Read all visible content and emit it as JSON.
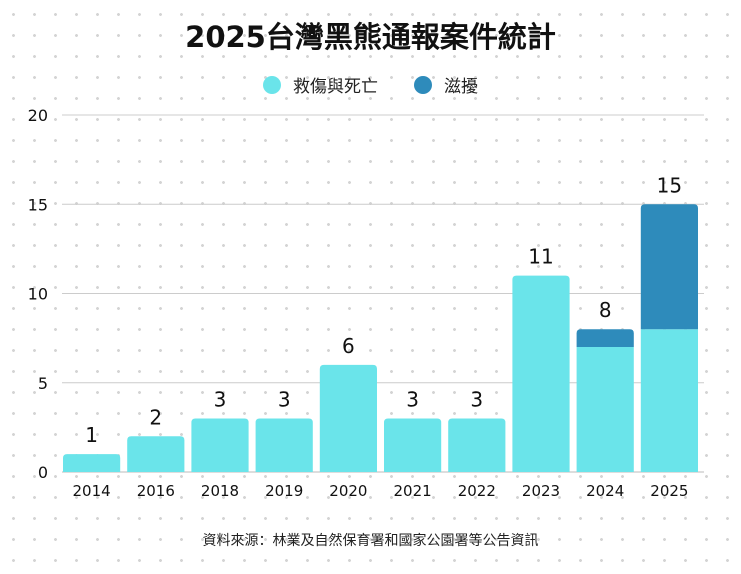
{
  "chart_data": {
    "type": "bar",
    "stacked": true,
    "title": "2025台灣黑熊通報案件統計",
    "categories": [
      "2014",
      "2016",
      "2018",
      "2019",
      "2020",
      "2021",
      "2022",
      "2023",
      "2024",
      "2025"
    ],
    "series": [
      {
        "name": "救傷與死亡",
        "color": "#6ae4ea",
        "values": [
          1,
          2,
          3,
          3,
          6,
          3,
          3,
          11,
          7,
          8
        ]
      },
      {
        "name": "滋擾",
        "color": "#2e8bbb",
        "values": [
          0,
          0,
          0,
          0,
          0,
          0,
          0,
          0,
          1,
          7
        ]
      }
    ],
    "totals": [
      1,
      2,
      3,
      3,
      6,
      3,
      3,
      11,
      8,
      15
    ],
    "ylim": [
      0,
      20
    ],
    "yticks": [
      0,
      5,
      10,
      15,
      20
    ],
    "grid": true,
    "legend": "top",
    "xlabel": "",
    "ylabel": "",
    "source": "資料來源：林業及自然保育署和國家公園署等公告資訊"
  }
}
